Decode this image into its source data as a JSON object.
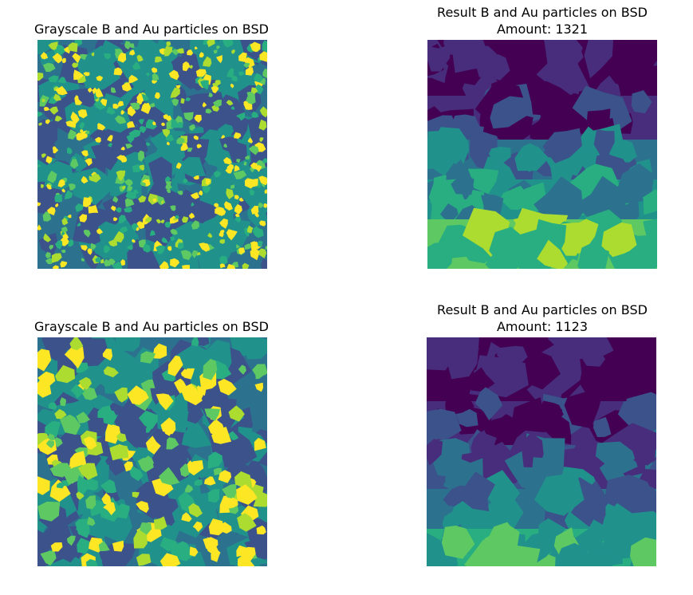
{
  "figure": {
    "panels": [
      {
        "id": "gray1",
        "title": "Grayscale B and Au particles on BSD",
        "subtitle": ""
      },
      {
        "id": "result1",
        "title": "Result B and Au particles on BSD",
        "subtitle": "Amount: 1321"
      },
      {
        "id": "gray2",
        "title": "Grayscale B and Au particles on BSD",
        "subtitle": ""
      },
      {
        "id": "result2",
        "title": "Result B and Au particles on BSD",
        "subtitle": "Amount: 1123"
      }
    ],
    "colormap": [
      "#440154",
      "#472d7b",
      "#3b528b",
      "#2c728e",
      "#21918c",
      "#28ae80",
      "#5ec962",
      "#addc30",
      "#fde725"
    ]
  }
}
